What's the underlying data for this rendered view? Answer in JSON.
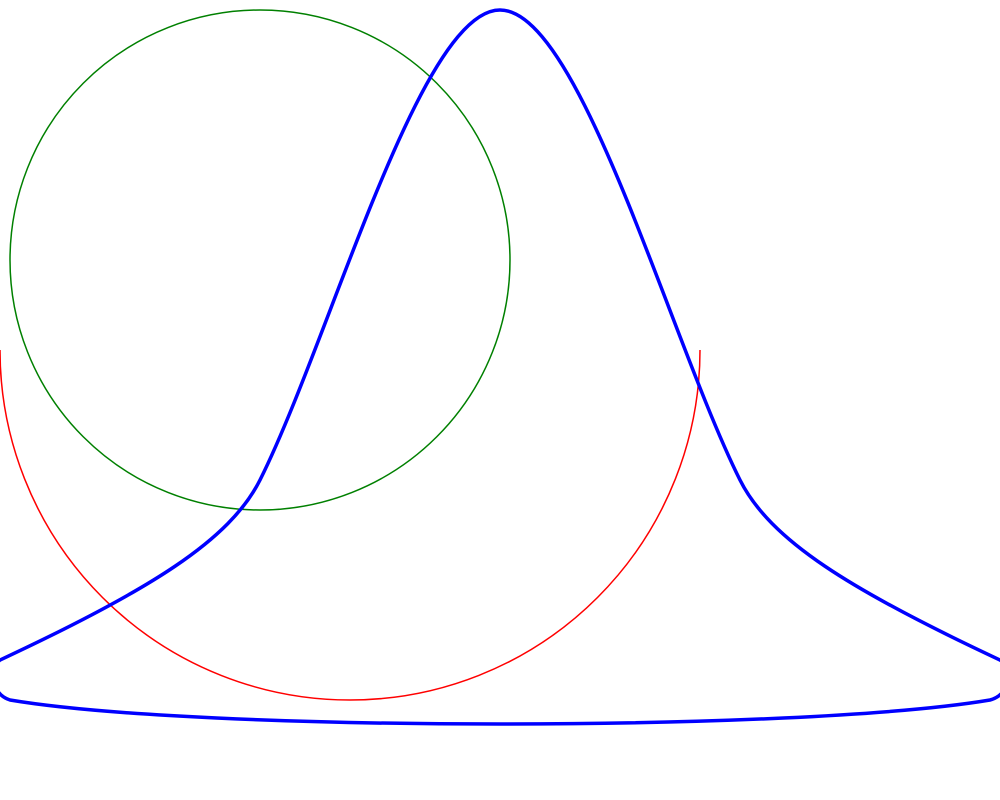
{
  "diagram": {
    "background": "#ffffff",
    "shapes": [
      {
        "id": "green-circle",
        "kind": "circle",
        "stroke": "#008000",
        "icon": "circle-outline"
      },
      {
        "id": "red-arc",
        "kind": "semicircle-arc",
        "stroke": "#ff0000",
        "icon": "arc-outline"
      },
      {
        "id": "blue-curve",
        "kind": "closed-bezier-path",
        "stroke": "#0000ff",
        "icon": "bell-curve-outline"
      }
    ]
  }
}
